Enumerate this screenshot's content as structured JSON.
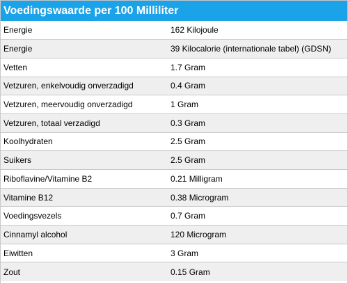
{
  "header": {
    "title": "Voedingswaarde per 100 Milliliter"
  },
  "colors": {
    "header_background": "#1aa3e8",
    "header_text": "#ffffff",
    "row_alt_background": "#efefef",
    "row_border": "#c8c8c8"
  },
  "rows": [
    {
      "name": "Energie",
      "value": "162 Kilojoule"
    },
    {
      "name": "Energie",
      "value": "39 Kilocalorie (internationale tabel) (GDSN)"
    },
    {
      "name": "Vetten",
      "value": "1.7 Gram"
    },
    {
      "name": "Vetzuren, enkelvoudig onverzadigd",
      "value": "0.4 Gram"
    },
    {
      "name": "Vetzuren, meervoudig onverzadigd",
      "value": "1 Gram"
    },
    {
      "name": "Vetzuren, totaal verzadigd",
      "value": "0.3 Gram"
    },
    {
      "name": "Koolhydraten",
      "value": "2.5 Gram"
    },
    {
      "name": "Suikers",
      "value": "2.5 Gram"
    },
    {
      "name": "Riboflavine/Vitamine B2",
      "value": "0.21 Milligram"
    },
    {
      "name": "Vitamine B12",
      "value": "0.38 Microgram"
    },
    {
      "name": "Voedingsvezels",
      "value": "0.7 Gram"
    },
    {
      "name": "Cinnamyl alcohol",
      "value": "120 Microgram"
    },
    {
      "name": "Eiwitten",
      "value": "3 Gram"
    },
    {
      "name": "Zout",
      "value": "0.15 Gram"
    }
  ]
}
